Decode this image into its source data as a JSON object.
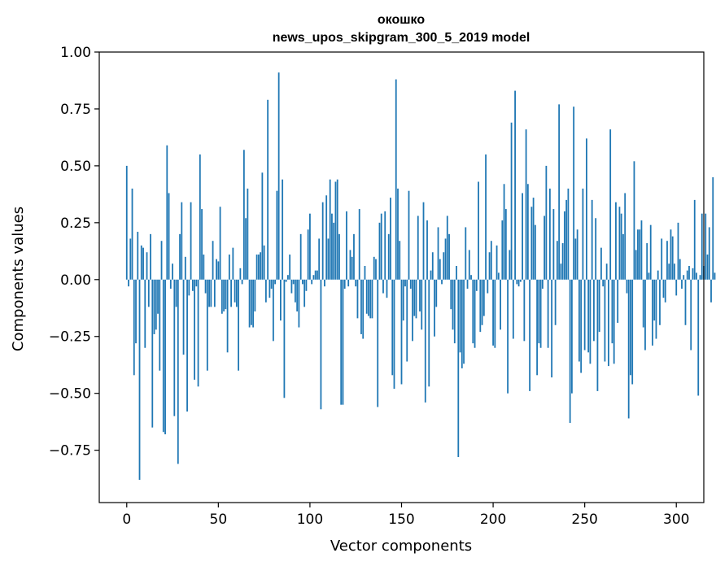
{
  "chart_data": {
    "type": "bar",
    "title_line1": "окошко",
    "title_line2": "news_upos_skipgram_300_5_2019 model",
    "xlabel": "Vector components",
    "ylabel": "Components values",
    "xlim": [
      -15,
      315
    ],
    "ylim": [
      -0.98,
      1.0
    ],
    "xticks": [
      0,
      50,
      100,
      150,
      200,
      250,
      300
    ],
    "yticks": [
      -0.75,
      -0.5,
      -0.25,
      0.0,
      0.25,
      0.5,
      0.75,
      1.0
    ],
    "xtick_labels": [
      "0",
      "50",
      "100",
      "150",
      "200",
      "250",
      "300"
    ],
    "ytick_labels": [
      "−0.75",
      "−0.50",
      "−0.25",
      "0.00",
      "0.25",
      "0.50",
      "0.75",
      "1.00"
    ],
    "bar_color": "#1f77b4",
    "values": [
      0.5,
      -0.03,
      0.18,
      0.4,
      -0.42,
      -0.28,
      0.21,
      -0.88,
      0.15,
      0.14,
      -0.3,
      0.12,
      -0.12,
      0.2,
      -0.65,
      -0.24,
      -0.22,
      -0.15,
      -0.4,
      0.17,
      -0.67,
      -0.68,
      0.59,
      0.38,
      -0.04,
      0.07,
      -0.6,
      -0.12,
      -0.81,
      0.2,
      0.34,
      -0.33,
      0.1,
      -0.58,
      -0.07,
      0.34,
      -0.05,
      -0.44,
      -0.03,
      -0.47,
      0.55,
      0.31,
      0.11,
      -0.06,
      -0.4,
      -0.12,
      -0.12,
      0.17,
      -0.12,
      0.09,
      0.08,
      0.32,
      -0.15,
      -0.14,
      -0.13,
      -0.32,
      0.11,
      -0.12,
      0.14,
      -0.1,
      -0.12,
      -0.4,
      0.05,
      -0.02,
      0.57,
      0.27,
      0.4,
      -0.21,
      -0.2,
      -0.21,
      -0.14,
      0.11,
      0.11,
      0.12,
      0.47,
      0.15,
      -0.1,
      0.79,
      -0.08,
      -0.04,
      -0.27,
      -0.02,
      0.39,
      0.91,
      -0.18,
      0.44,
      -0.52,
      -0.01,
      0.02,
      0.11,
      -0.06,
      -0.02,
      -0.1,
      -0.14,
      -0.21,
      0.2,
      -0.02,
      -0.12,
      -0.05,
      0.22,
      0.29,
      -0.02,
      0.02,
      0.04,
      0.04,
      0.18,
      -0.57,
      0.34,
      -0.03,
      0.37,
      0.18,
      0.44,
      0.29,
      0.25,
      0.43,
      0.44,
      0.2,
      -0.55,
      -0.55,
      -0.04,
      0.3,
      -0.03,
      0.13,
      0.1,
      0.2,
      -0.03,
      -0.17,
      0.31,
      -0.24,
      -0.26,
      0.06,
      -0.15,
      -0.16,
      -0.17,
      -0.17,
      0.1,
      0.09,
      -0.56,
      0.25,
      0.29,
      -0.06,
      0.3,
      -0.08,
      0.2,
      0.36,
      -0.42,
      -0.48,
      0.88,
      0.4,
      0.17,
      -0.46,
      -0.18,
      -0.03,
      -0.36,
      0.39,
      -0.04,
      -0.27,
      -0.16,
      -0.17,
      0.28,
      -0.14,
      -0.22,
      0.34,
      -0.54,
      0.26,
      -0.47,
      0.04,
      0.12,
      -0.25,
      -0.12,
      0.23,
      0.09,
      -0.02,
      0.12,
      0.18,
      0.28,
      0.2,
      -0.13,
      -0.22,
      -0.28,
      0.06,
      -0.78,
      -0.32,
      -0.39,
      -0.37,
      0.23,
      -0.04,
      0.13,
      0.02,
      -0.28,
      -0.3,
      -0.05,
      0.43,
      -0.23,
      -0.2,
      -0.16,
      0.55,
      -0.06,
      0.12,
      0.17,
      -0.29,
      -0.3,
      0.15,
      0.03,
      -0.22,
      0.26,
      0.42,
      0.31,
      -0.5,
      0.13,
      0.69,
      -0.26,
      0.83,
      -0.02,
      -0.03,
      -0.01,
      0.38,
      -0.27,
      0.66,
      0.42,
      -0.49,
      0.32,
      0.36,
      0.24,
      -0.42,
      -0.28,
      -0.3,
      -0.04,
      0.28,
      0.5,
      -0.3,
      0.4,
      -0.43,
      0.31,
      -0.2,
      0.17,
      0.77,
      0.07,
      0.16,
      0.3,
      0.35,
      0.4,
      -0.63,
      -0.5,
      0.76,
      0.18,
      0.22,
      -0.36,
      -0.41,
      0.4,
      -0.31,
      0.62,
      -0.32,
      -0.37,
      0.35,
      -0.27,
      0.27,
      -0.49,
      -0.23,
      0.14,
      -0.03,
      -0.36,
      0.07,
      -0.38,
      0.66,
      -0.28,
      -0.37,
      0.34,
      -0.19,
      0.32,
      0.29,
      0.2,
      0.38,
      -0.06,
      -0.61,
      -0.42,
      -0.46,
      0.52,
      0.13,
      0.22,
      0.22,
      0.26,
      -0.21,
      -0.31,
      0.16,
      0.03,
      0.24,
      -0.29,
      -0.18,
      -0.26,
      0.04,
      -0.2,
      0.18,
      -0.08,
      -0.1,
      0.17,
      0.07,
      0.22,
      0.19,
      0.07,
      -0.07,
      0.25,
      0.09,
      -0.04,
      0.02,
      -0.2,
      0.04,
      0.06,
      -0.31,
      0.05,
      0.35,
      0.03,
      -0.51,
      0.02,
      0.29,
      0.06,
      0.29,
      0.11,
      0.23,
      -0.1,
      0.45,
      0.03
    ]
  }
}
